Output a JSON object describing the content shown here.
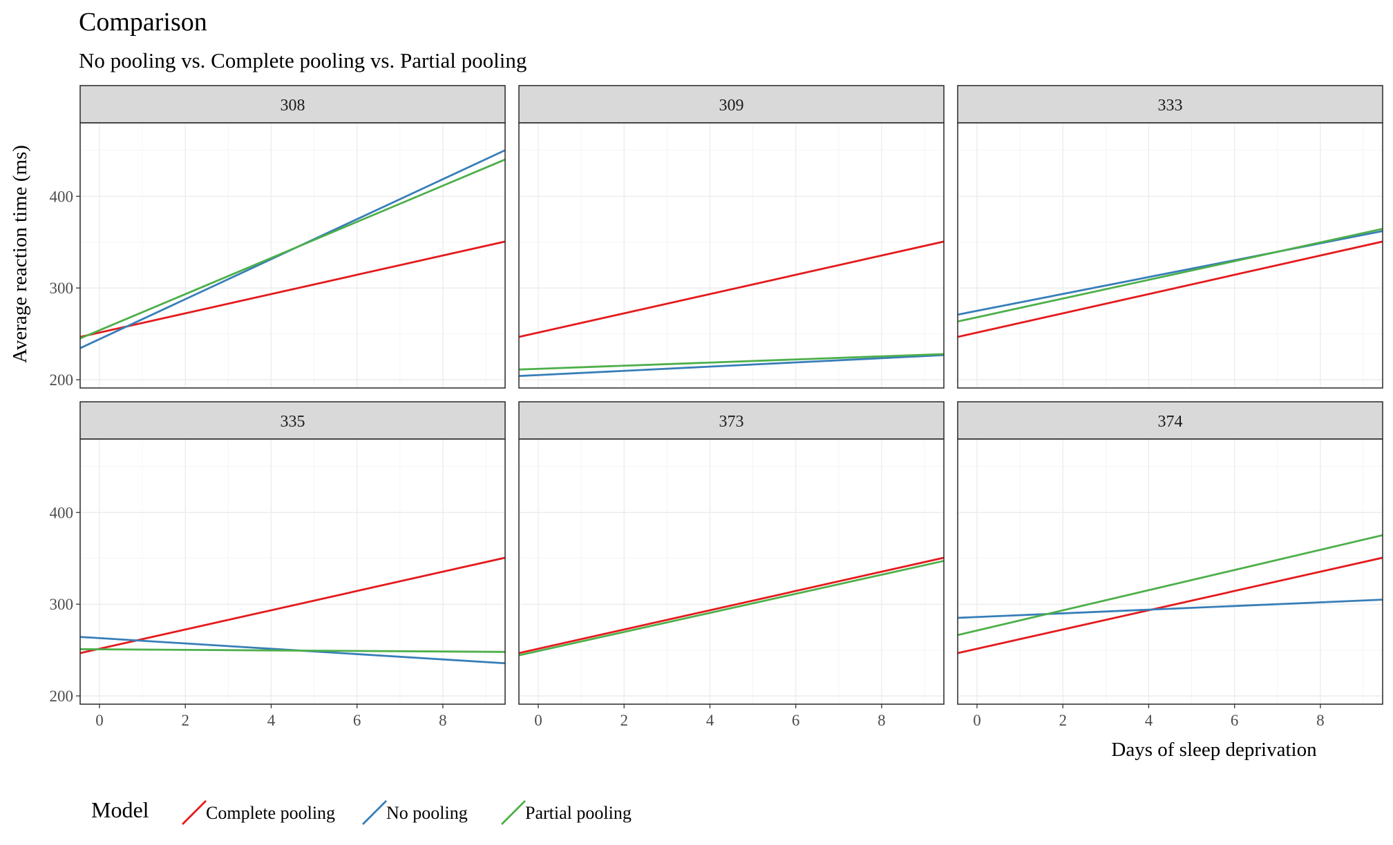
{
  "chart_data": {
    "type": "line",
    "title": "Comparison",
    "subtitle": "No pooling vs. Complete pooling vs. Partial pooling",
    "xlabel": "Days of sleep deprivation",
    "ylabel": "Average reaction time (ms)",
    "xlim": [
      -0.45,
      9.45
    ],
    "ylim": [
      191,
      480
    ],
    "x_ticks": [
      0,
      2,
      4,
      6,
      8
    ],
    "y_ticks": [
      200,
      300,
      400
    ],
    "grid": true,
    "legend": {
      "title": "Model",
      "position": "bottom-left",
      "entries": [
        "Complete pooling",
        "No pooling",
        "Partial pooling"
      ]
    },
    "colors": {
      "Complete pooling": "#e41a1c",
      "No pooling": "#377eb8",
      "Partial pooling": "#4daf4a"
    },
    "panels": [
      {
        "label": "308",
        "series": [
          {
            "name": "Complete pooling",
            "intercept": 251.4,
            "slope": 10.5
          },
          {
            "name": "No pooling",
            "intercept": 244.2,
            "slope": 21.8
          },
          {
            "name": "Partial pooling",
            "intercept": 253.9,
            "slope": 19.7
          }
        ]
      },
      {
        "label": "309",
        "series": [
          {
            "name": "Complete pooling",
            "intercept": 251.4,
            "slope": 10.5
          },
          {
            "name": "No pooling",
            "intercept": 205.1,
            "slope": 2.3
          },
          {
            "name": "Partial pooling",
            "intercept": 211.9,
            "slope": 1.7
          }
        ]
      },
      {
        "label": "333",
        "series": [
          {
            "name": "Complete pooling",
            "intercept": 251.4,
            "slope": 10.5
          },
          {
            "name": "No pooling",
            "intercept": 275.1,
            "slope": 9.2
          },
          {
            "name": "Partial pooling",
            "intercept": 268.1,
            "slope": 10.2
          }
        ]
      },
      {
        "label": "335",
        "series": [
          {
            "name": "Complete pooling",
            "intercept": 251.4,
            "slope": 10.5
          },
          {
            "name": "No pooling",
            "intercept": 263.0,
            "slope": -2.9
          },
          {
            "name": "Partial pooling",
            "intercept": 250.8,
            "slope": -0.3
          }
        ]
      },
      {
        "label": "373",
        "series": [
          {
            "name": "Complete pooling",
            "intercept": 251.4,
            "slope": 10.5
          },
          {
            "name": "Partial pooling",
            "intercept": 248.9,
            "slope": 10.4
          }
        ]
      },
      {
        "label": "374",
        "series": [
          {
            "name": "Complete pooling",
            "intercept": 251.4,
            "slope": 10.5
          },
          {
            "name": "No pooling",
            "intercept": 286.0,
            "slope": 2.0
          },
          {
            "name": "Partial pooling",
            "intercept": 271.3,
            "slope": 11.0
          }
        ]
      }
    ]
  }
}
